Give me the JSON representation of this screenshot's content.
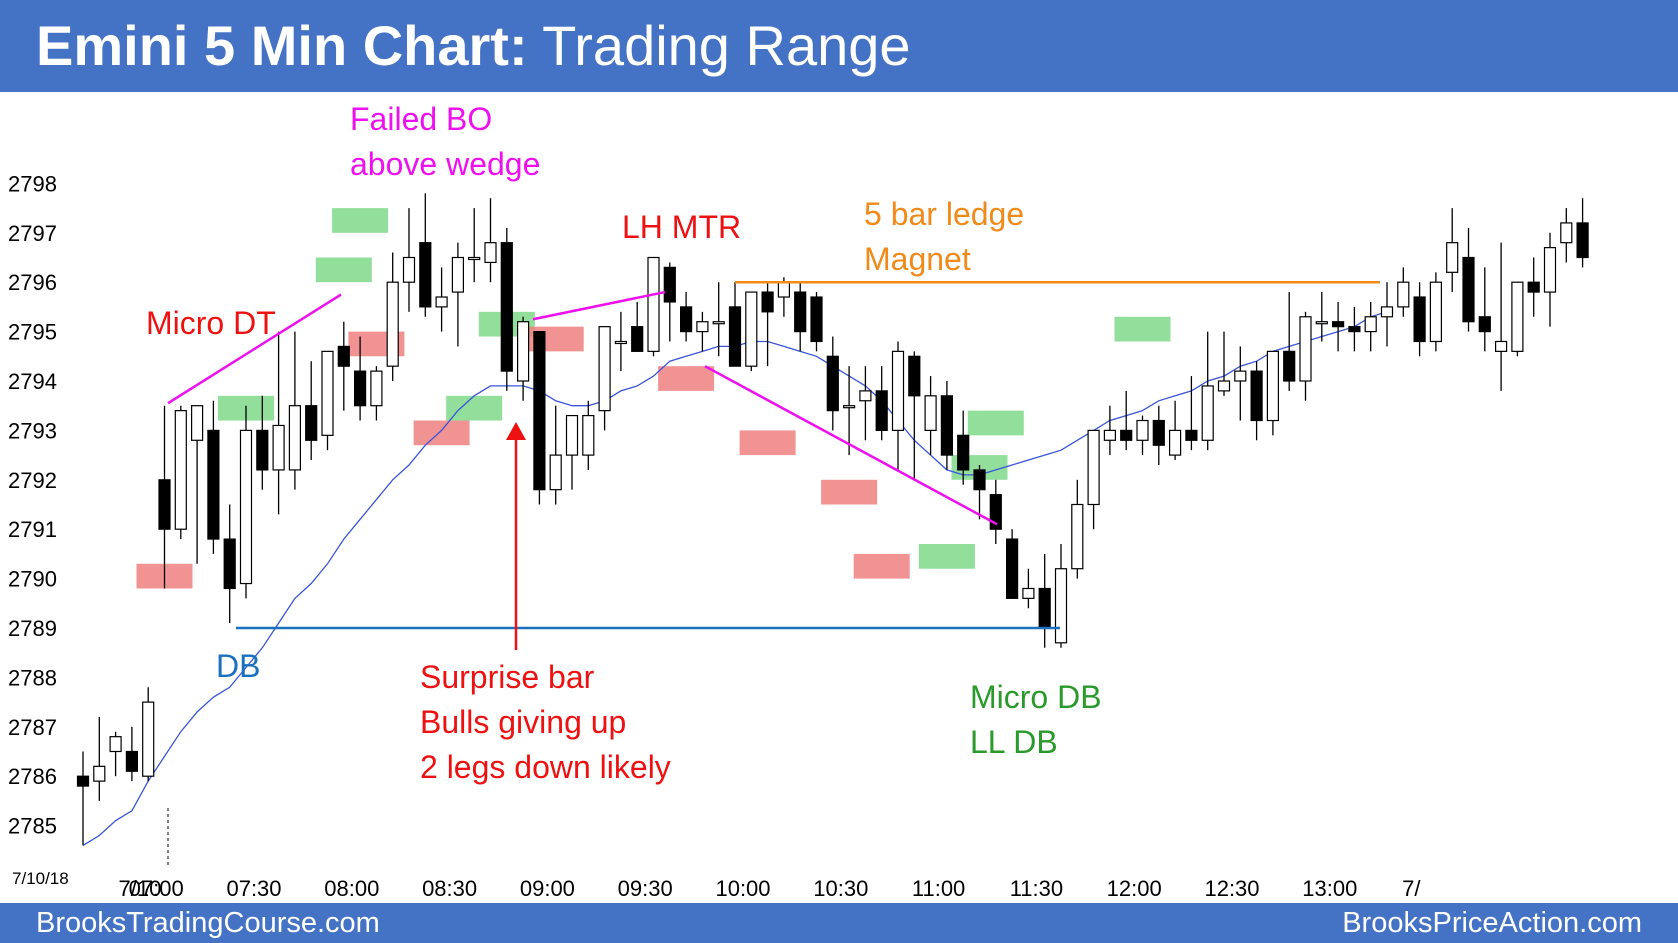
{
  "header": {
    "title_bold": "Emini 5 Min Chart:",
    "title_rest": "Trading Range"
  },
  "footer": {
    "left": "BrooksTradingCourse.com",
    "right": "BrooksPriceAction.com"
  },
  "colors": {
    "header_bg": "#4472c4",
    "ema": "#3a55d8",
    "bull_highlight": "#7fd88a",
    "bear_highlight": "#f08080",
    "magenta": "#ee10ee",
    "red": "#ee1111",
    "blue": "#1a70c0",
    "orange": "#f08a1a",
    "green": "#2a9a2a"
  },
  "chart_data": {
    "type": "candlestick",
    "title": "Emini 5 Min Chart: Trading Range",
    "yticks": [
      2785,
      2786,
      2787,
      2788,
      2789,
      2790,
      2791,
      2792,
      2793,
      2794,
      2795,
      2796,
      2797,
      2798
    ],
    "ylim": [
      2784.2,
      2798.7
    ],
    "xticks": [
      {
        "i": 3,
        "label": "7/10"
      },
      {
        "i": 4,
        "label": "07:00"
      },
      {
        "i": 10,
        "label": "07:30"
      },
      {
        "i": 16,
        "label": "08:00"
      },
      {
        "i": 22,
        "label": "08:30"
      },
      {
        "i": 28,
        "label": "09:00"
      },
      {
        "i": 34,
        "label": "09:30"
      },
      {
        "i": 40,
        "label": "10:00"
      },
      {
        "i": 46,
        "label": "10:30"
      },
      {
        "i": 52,
        "label": "11:00"
      },
      {
        "i": 58,
        "label": "11:30"
      },
      {
        "i": 64,
        "label": "12:00"
      },
      {
        "i": 70,
        "label": "12:30"
      },
      {
        "i": 76,
        "label": "13:00"
      },
      {
        "i": 81,
        "label": "7/"
      }
    ],
    "date_label": "7/10/18",
    "bars": [
      {
        "o": 2786.0,
        "h": 2786.5,
        "l": 2784.6,
        "c": 2785.8
      },
      {
        "o": 2785.9,
        "h": 2787.2,
        "l": 2785.5,
        "c": 2786.2
      },
      {
        "o": 2786.5,
        "h": 2786.9,
        "l": 2786.0,
        "c": 2786.8
      },
      {
        "o": 2786.5,
        "h": 2787.0,
        "l": 2785.9,
        "c": 2786.1
      },
      {
        "o": 2786.0,
        "h": 2787.8,
        "l": 2785.9,
        "c": 2787.5
      },
      {
        "o": 2792.0,
        "h": 2793.5,
        "l": 2789.8,
        "c": 2791.0
      },
      {
        "o": 2791.0,
        "h": 2793.5,
        "l": 2790.8,
        "c": 2793.4
      },
      {
        "o": 2792.8,
        "h": 2793.5,
        "l": 2790.3,
        "c": 2793.5
      },
      {
        "o": 2793.0,
        "h": 2793.6,
        "l": 2790.5,
        "c": 2790.8
      },
      {
        "o": 2790.8,
        "h": 2791.5,
        "l": 2789.1,
        "c": 2789.8
      },
      {
        "o": 2789.9,
        "h": 2793.5,
        "l": 2789.6,
        "c": 2793.0
      },
      {
        "o": 2793.0,
        "h": 2793.7,
        "l": 2791.8,
        "c": 2792.2
      },
      {
        "o": 2792.2,
        "h": 2795.0,
        "l": 2791.3,
        "c": 2793.1
      },
      {
        "o": 2792.2,
        "h": 2795.0,
        "l": 2791.8,
        "c": 2793.5
      },
      {
        "o": 2793.5,
        "h": 2794.4,
        "l": 2792.4,
        "c": 2792.8
      },
      {
        "o": 2792.9,
        "h": 2794.6,
        "l": 2792.6,
        "c": 2794.6
      },
      {
        "o": 2794.7,
        "h": 2795.2,
        "l": 2793.4,
        "c": 2794.3
      },
      {
        "o": 2794.2,
        "h": 2794.9,
        "l": 2793.2,
        "c": 2793.5
      },
      {
        "o": 2793.5,
        "h": 2794.3,
        "l": 2793.2,
        "c": 2794.2
      },
      {
        "o": 2794.3,
        "h": 2796.6,
        "l": 2794.0,
        "c": 2796.0
      },
      {
        "o": 2796.0,
        "h": 2797.5,
        "l": 2795.4,
        "c": 2796.5
      },
      {
        "o": 2796.8,
        "h": 2797.8,
        "l": 2795.3,
        "c": 2795.5
      },
      {
        "o": 2795.5,
        "h": 2796.3,
        "l": 2795.0,
        "c": 2795.7
      },
      {
        "o": 2795.8,
        "h": 2796.8,
        "l": 2794.7,
        "c": 2796.5
      },
      {
        "o": 2796.5,
        "h": 2797.5,
        "l": 2796.0,
        "c": 2796.5
      },
      {
        "o": 2796.4,
        "h": 2797.7,
        "l": 2796.0,
        "c": 2796.8
      },
      {
        "o": 2796.8,
        "h": 2797.1,
        "l": 2793.8,
        "c": 2794.2
      },
      {
        "o": 2794.0,
        "h": 2795.3,
        "l": 2793.6,
        "c": 2795.2
      },
      {
        "o": 2795.0,
        "h": 2795.0,
        "l": 2791.5,
        "c": 2791.8
      },
      {
        "o": 2791.8,
        "h": 2793.5,
        "l": 2791.5,
        "c": 2792.5
      },
      {
        "o": 2792.5,
        "h": 2793.2,
        "l": 2791.8,
        "c": 2793.3
      },
      {
        "o": 2792.5,
        "h": 2793.6,
        "l": 2792.2,
        "c": 2793.3
      },
      {
        "o": 2793.4,
        "h": 2795.1,
        "l": 2793.0,
        "c": 2795.1
      },
      {
        "o": 2794.8,
        "h": 2795.4,
        "l": 2794.2,
        "c": 2794.8
      },
      {
        "o": 2795.1,
        "h": 2795.6,
        "l": 2794.6,
        "c": 2794.6
      },
      {
        "o": 2794.6,
        "h": 2796.5,
        "l": 2794.5,
        "c": 2796.5
      },
      {
        "o": 2796.3,
        "h": 2796.4,
        "l": 2794.8,
        "c": 2795.6
      },
      {
        "o": 2795.5,
        "h": 2795.8,
        "l": 2794.8,
        "c": 2795.0
      },
      {
        "o": 2795.0,
        "h": 2795.4,
        "l": 2794.6,
        "c": 2795.2
      },
      {
        "o": 2795.2,
        "h": 2796.0,
        "l": 2794.5,
        "c": 2795.2
      },
      {
        "o": 2795.5,
        "h": 2796.0,
        "l": 2794.3,
        "c": 2794.3
      },
      {
        "o": 2794.3,
        "h": 2795.8,
        "l": 2794.2,
        "c": 2795.8
      },
      {
        "o": 2795.8,
        "h": 2796.0,
        "l": 2794.3,
        "c": 2795.4
      },
      {
        "o": 2795.7,
        "h": 2796.1,
        "l": 2795.3,
        "c": 2796.0
      },
      {
        "o": 2795.8,
        "h": 2796.0,
        "l": 2794.6,
        "c": 2795.0
      },
      {
        "o": 2795.7,
        "h": 2795.8,
        "l": 2794.6,
        "c": 2794.8
      },
      {
        "o": 2794.5,
        "h": 2794.9,
        "l": 2793.0,
        "c": 2793.4
      },
      {
        "o": 2793.5,
        "h": 2794.3,
        "l": 2792.5,
        "c": 2793.5
      },
      {
        "o": 2793.6,
        "h": 2794.3,
        "l": 2792.8,
        "c": 2793.8
      },
      {
        "o": 2793.8,
        "h": 2794.3,
        "l": 2792.8,
        "c": 2793.0
      },
      {
        "o": 2793.0,
        "h": 2794.8,
        "l": 2792.2,
        "c": 2794.6
      },
      {
        "o": 2794.5,
        "h": 2794.6,
        "l": 2792.0,
        "c": 2793.7
      },
      {
        "o": 2793.0,
        "h": 2794.1,
        "l": 2792.5,
        "c": 2793.7
      },
      {
        "o": 2793.7,
        "h": 2794.0,
        "l": 2792.2,
        "c": 2792.5
      },
      {
        "o": 2792.9,
        "h": 2793.4,
        "l": 2791.9,
        "c": 2792.2
      },
      {
        "o": 2792.2,
        "h": 2792.3,
        "l": 2791.2,
        "c": 2791.8
      },
      {
        "o": 2791.7,
        "h": 2792.0,
        "l": 2790.7,
        "c": 2791.0
      },
      {
        "o": 2790.8,
        "h": 2791.0,
        "l": 2789.6,
        "c": 2789.6
      },
      {
        "o": 2789.6,
        "h": 2790.2,
        "l": 2789.4,
        "c": 2789.8
      },
      {
        "o": 2789.8,
        "h": 2790.5,
        "l": 2788.6,
        "c": 2789.0
      },
      {
        "o": 2788.7,
        "h": 2790.7,
        "l": 2788.6,
        "c": 2790.2
      },
      {
        "o": 2790.2,
        "h": 2792.0,
        "l": 2790.0,
        "c": 2791.5
      },
      {
        "o": 2791.5,
        "h": 2793.0,
        "l": 2791.0,
        "c": 2793.0
      },
      {
        "o": 2792.8,
        "h": 2793.5,
        "l": 2792.5,
        "c": 2793.0
      },
      {
        "o": 2793.0,
        "h": 2793.8,
        "l": 2792.6,
        "c": 2792.8
      },
      {
        "o": 2792.8,
        "h": 2793.3,
        "l": 2792.5,
        "c": 2793.2
      },
      {
        "o": 2793.2,
        "h": 2793.5,
        "l": 2792.3,
        "c": 2792.7
      },
      {
        "o": 2792.5,
        "h": 2793.6,
        "l": 2792.4,
        "c": 2793.0
      },
      {
        "o": 2793.0,
        "h": 2794.1,
        "l": 2792.6,
        "c": 2792.8
      },
      {
        "o": 2792.8,
        "h": 2795.0,
        "l": 2792.6,
        "c": 2793.9
      },
      {
        "o": 2793.8,
        "h": 2795.0,
        "l": 2793.7,
        "c": 2794.0
      },
      {
        "o": 2794.0,
        "h": 2794.7,
        "l": 2793.2,
        "c": 2794.2
      },
      {
        "o": 2794.2,
        "h": 2794.4,
        "l": 2792.8,
        "c": 2793.2
      },
      {
        "o": 2793.2,
        "h": 2794.6,
        "l": 2792.9,
        "c": 2794.6
      },
      {
        "o": 2794.6,
        "h": 2795.8,
        "l": 2793.8,
        "c": 2794.0
      },
      {
        "o": 2794.0,
        "h": 2795.4,
        "l": 2793.6,
        "c": 2795.3
      },
      {
        "o": 2795.2,
        "h": 2795.8,
        "l": 2794.8,
        "c": 2795.2
      },
      {
        "o": 2795.2,
        "h": 2795.6,
        "l": 2794.6,
        "c": 2795.1
      },
      {
        "o": 2795.1,
        "h": 2795.5,
        "l": 2794.6,
        "c": 2795.0
      },
      {
        "o": 2795.0,
        "h": 2795.6,
        "l": 2794.6,
        "c": 2795.3
      },
      {
        "o": 2795.3,
        "h": 2796.0,
        "l": 2794.7,
        "c": 2795.5
      },
      {
        "o": 2795.5,
        "h": 2796.3,
        "l": 2795.3,
        "c": 2796.0
      },
      {
        "o": 2795.7,
        "h": 2796.0,
        "l": 2794.5,
        "c": 2794.8
      },
      {
        "o": 2794.8,
        "h": 2796.2,
        "l": 2794.6,
        "c": 2796.0
      },
      {
        "o": 2796.2,
        "h": 2797.5,
        "l": 2795.8,
        "c": 2796.8
      },
      {
        "o": 2796.5,
        "h": 2797.1,
        "l": 2795.0,
        "c": 2795.2
      },
      {
        "o": 2795.3,
        "h": 2796.3,
        "l": 2794.6,
        "c": 2795.0
      },
      {
        "o": 2794.6,
        "h": 2796.8,
        "l": 2793.8,
        "c": 2794.8
      },
      {
        "o": 2794.6,
        "h": 2796.0,
        "l": 2794.5,
        "c": 2796.0
      },
      {
        "o": 2796.0,
        "h": 2796.5,
        "l": 2795.3,
        "c": 2795.8
      },
      {
        "o": 2795.8,
        "h": 2797.0,
        "l": 2795.1,
        "c": 2796.7
      },
      {
        "o": 2796.8,
        "h": 2797.5,
        "l": 2796.4,
        "c": 2797.2
      },
      {
        "o": 2797.2,
        "h": 2797.7,
        "l": 2796.3,
        "c": 2796.5
      }
    ],
    "ema": [
      2784.6,
      2784.8,
      2785.1,
      2785.3,
      2785.9,
      2786.4,
      2786.9,
      2787.3,
      2787.6,
      2787.8,
      2788.2,
      2788.6,
      2789.1,
      2789.6,
      2789.9,
      2790.3,
      2790.8,
      2791.2,
      2791.6,
      2792.0,
      2792.3,
      2792.7,
      2793.0,
      2793.4,
      2793.7,
      2793.9,
      2793.9,
      2793.9,
      2793.8,
      2793.6,
      2793.5,
      2793.5,
      2793.6,
      2793.8,
      2793.9,
      2794.1,
      2794.4,
      2794.5,
      2794.6,
      2794.7,
      2794.7,
      2794.8,
      2794.8,
      2794.7,
      2794.6,
      2794.5,
      2794.3,
      2794.1,
      2793.9,
      2793.6,
      2793.2,
      2792.8,
      2792.5,
      2792.2,
      2792.1,
      2792.1,
      2792.2,
      2792.3,
      2792.4,
      2792.5,
      2792.6,
      2792.8,
      2793.0,
      2793.2,
      2793.3,
      2793.4,
      2793.6,
      2793.7,
      2793.8,
      2794.0,
      2794.1,
      2794.3,
      2794.4,
      2794.6,
      2794.7,
      2794.8,
      2794.9,
      2795.0,
      2795.1,
      2795.3,
      2795.4
    ],
    "highlights": [
      {
        "i": 5,
        "lo": 2789.8,
        "hi": 2790.3,
        "kind": "bear"
      },
      {
        "i": 10,
        "lo": 2793.2,
        "hi": 2793.7,
        "kind": "bull"
      },
      {
        "i": 16,
        "lo": 2796.0,
        "hi": 2796.5,
        "kind": "bull"
      },
      {
        "i": 17,
        "lo": 2797.0,
        "hi": 2797.5,
        "kind": "bull"
      },
      {
        "i": 18,
        "lo": 2794.5,
        "hi": 2795.0,
        "kind": "bear"
      },
      {
        "i": 22,
        "lo": 2792.7,
        "hi": 2793.2,
        "kind": "bear"
      },
      {
        "i": 24,
        "lo": 2793.2,
        "hi": 2793.7,
        "kind": "bull"
      },
      {
        "i": 26,
        "lo": 2794.9,
        "hi": 2795.4,
        "kind": "bull"
      },
      {
        "i": 29,
        "lo": 2794.6,
        "hi": 2795.1,
        "kind": "bear"
      },
      {
        "i": 37,
        "lo": 2793.8,
        "hi": 2794.3,
        "kind": "bear"
      },
      {
        "i": 42,
        "lo": 2792.5,
        "hi": 2793.0,
        "kind": "bear"
      },
      {
        "i": 47,
        "lo": 2791.5,
        "hi": 2792.0,
        "kind": "bear"
      },
      {
        "i": 49,
        "lo": 2790.0,
        "hi": 2790.5,
        "kind": "bear"
      },
      {
        "i": 53,
        "lo": 2790.2,
        "hi": 2790.7,
        "kind": "bull"
      },
      {
        "i": 55,
        "lo": 2792.0,
        "hi": 2792.5,
        "kind": "bull"
      },
      {
        "i": 56,
        "lo": 2792.9,
        "hi": 2793.4,
        "kind": "bull"
      },
      {
        "i": 65,
        "lo": 2794.8,
        "hi": 2795.3,
        "kind": "bull"
      }
    ],
    "annotations": [
      {
        "text": "Failed BO",
        "color": "magenta"
      },
      {
        "text": "above wedge",
        "color": "magenta"
      },
      {
        "text": "Micro DT",
        "color": "red"
      },
      {
        "text": "LH MTR",
        "color": "red"
      },
      {
        "text": "5 bar ledge",
        "color": "orange"
      },
      {
        "text": "Magnet",
        "color": "orange"
      },
      {
        "text": "DB",
        "color": "blue"
      },
      {
        "text": "Surprise bar",
        "color": "red"
      },
      {
        "text": "Bulls giving up",
        "color": "red"
      },
      {
        "text": "2 legs down likely",
        "color": "red"
      },
      {
        "text": "Micro DB",
        "color": "green"
      },
      {
        "text": "LL DB",
        "color": "green"
      }
    ]
  }
}
